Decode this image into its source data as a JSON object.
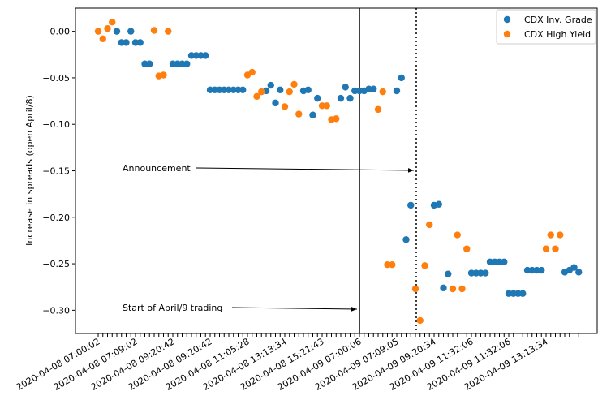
{
  "chart_data": {
    "type": "scatter",
    "y_label": "Increase in spreads (open April/8)",
    "categories": [
      "2020-04-08 07:00:02",
      null,
      null,
      null,
      null,
      null,
      null,
      null,
      "2020-04-08 07:09:02",
      null,
      null,
      null,
      null,
      null,
      null,
      null,
      "2020-04-08 09:20:42",
      null,
      null,
      null,
      null,
      null,
      null,
      null,
      "2020-04-08 09:20:42",
      null,
      null,
      null,
      null,
      null,
      null,
      null,
      "2020-04-08 11:05:28",
      null,
      null,
      null,
      null,
      null,
      null,
      null,
      "2020-04-08 13:13:34",
      null,
      null,
      null,
      null,
      null,
      null,
      null,
      "2020-04-08 15:21:43",
      null,
      null,
      null,
      null,
      null,
      null,
      null,
      "2020-04-09 07:00:06",
      null,
      null,
      null,
      null,
      null,
      null,
      null,
      "2020-04-09 07:09:05",
      null,
      null,
      null,
      null,
      null,
      null,
      null,
      "2020-04-09 09:20:34",
      null,
      null,
      null,
      null,
      null,
      null,
      null,
      "2020-04-09 11:32:06",
      null,
      null,
      null,
      null,
      null,
      null,
      null,
      "2020-04-09 11:32:06",
      null,
      null,
      null,
      null,
      null,
      null,
      null,
      "2020-04-09 13:13:34",
      null,
      null,
      null,
      null,
      null,
      null,
      null
    ],
    "series": [
      {
        "name": "CDX Inv. Grade",
        "color": "#1f77b4",
        "values": [
          null,
          null,
          null,
          null,
          0.0,
          -0.012,
          -0.012,
          0.0,
          -0.012,
          -0.012,
          -0.035,
          -0.035,
          null,
          null,
          null,
          null,
          -0.035,
          -0.035,
          -0.035,
          -0.035,
          -0.026,
          -0.026,
          -0.026,
          -0.026,
          -0.063,
          -0.063,
          -0.063,
          -0.063,
          -0.063,
          -0.063,
          -0.063,
          -0.063,
          null,
          null,
          null,
          null,
          -0.064,
          -0.058,
          -0.077,
          -0.063,
          null,
          null,
          null,
          null,
          -0.064,
          -0.063,
          -0.09,
          -0.072,
          null,
          null,
          null,
          null,
          -0.072,
          -0.06,
          -0.072,
          -0.064,
          -0.064,
          -0.064,
          -0.062,
          -0.062,
          null,
          null,
          null,
          null,
          -0.064,
          -0.05,
          -0.224,
          -0.187,
          null,
          null,
          null,
          null,
          -0.187,
          -0.186,
          -0.276,
          -0.261,
          null,
          null,
          null,
          null,
          -0.26,
          -0.26,
          -0.26,
          -0.26,
          -0.248,
          -0.248,
          -0.248,
          -0.248,
          -0.282,
          -0.282,
          -0.282,
          -0.282,
          -0.257,
          -0.257,
          -0.257,
          -0.257,
          null,
          null,
          null,
          null,
          -0.259,
          -0.257,
          -0.254,
          -0.259
        ]
      },
      {
        "name": "CDX High Yield",
        "color": "#ff7f0e",
        "values": [
          0.0,
          -0.008,
          0.003,
          0.01,
          null,
          null,
          null,
          null,
          null,
          null,
          null,
          null,
          0.001,
          -0.048,
          -0.047,
          0.0,
          null,
          null,
          null,
          null,
          null,
          null,
          null,
          null,
          null,
          null,
          null,
          null,
          null,
          null,
          null,
          null,
          -0.047,
          -0.044,
          -0.07,
          -0.065,
          null,
          null,
          null,
          null,
          -0.081,
          -0.065,
          -0.057,
          -0.089,
          null,
          null,
          null,
          null,
          -0.08,
          -0.08,
          -0.095,
          -0.094,
          null,
          null,
          null,
          null,
          null,
          null,
          null,
          null,
          -0.084,
          -0.065,
          -0.251,
          -0.251,
          null,
          null,
          null,
          null,
          -0.277,
          -0.311,
          -0.252,
          -0.208,
          null,
          null,
          null,
          null,
          -0.277,
          -0.219,
          -0.277,
          -0.234,
          null,
          null,
          null,
          null,
          null,
          null,
          null,
          null,
          null,
          null,
          null,
          null,
          null,
          null,
          null,
          null,
          -0.234,
          -0.219,
          -0.234,
          -0.219,
          null,
          null,
          null,
          null
        ]
      }
    ],
    "ylim": [
      -0.325,
      0.025
    ],
    "yticks": [
      {
        "value": 0,
        "label": "0.00"
      },
      {
        "value": -0.05,
        "label": "−0.05"
      },
      {
        "value": -0.1,
        "label": "−0.10"
      },
      {
        "value": -0.15,
        "label": "−0.15"
      },
      {
        "value": -0.2,
        "label": "−0.20"
      },
      {
        "value": -0.25,
        "label": "−0.25"
      },
      {
        "value": -0.3,
        "label": "−0.30"
      }
    ],
    "annotations": [
      "Announcement",
      "Start of April/9 trading"
    ],
    "legend": "upper right"
  }
}
